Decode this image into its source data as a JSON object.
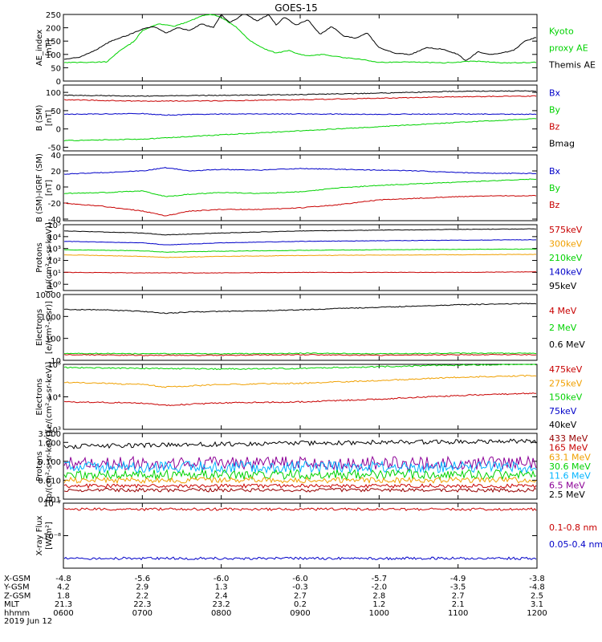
{
  "title": "GOES-15",
  "footer_date": "2019 Jun 12",
  "colors": {
    "black": "#000000",
    "green": "#00d200",
    "blue": "#0000c8",
    "red": "#c80000",
    "orange": "#f0a000",
    "cyan": "#00b4ff",
    "darkred": "#960000",
    "purple": "#8c0096"
  },
  "chart_data": [
    {
      "id": "ae",
      "type": "line",
      "ylabel": [
        "AE_index",
        "[nT]"
      ],
      "ylim": [
        0,
        250
      ],
      "yticks": [
        0,
        50,
        100,
        150,
        200,
        250
      ],
      "legend": [
        {
          "text": "Kyoto",
          "color": "green"
        },
        {
          "text": "proxy AE",
          "color": "green"
        },
        {
          "text": "Themis AE",
          "color": "black"
        }
      ],
      "series": [
        {
          "name": "Kyoto",
          "color": "green",
          "x": [
            6.0,
            6.3,
            6.55,
            6.7,
            6.9,
            7.0,
            7.2,
            7.4,
            7.6,
            7.75,
            7.85,
            7.95,
            8.05,
            8.2,
            8.35,
            8.55,
            8.7,
            8.85,
            9.0,
            9.1,
            9.3,
            9.5,
            9.8,
            10.0,
            10.4,
            10.8,
            11.2,
            11.6,
            12.0
          ],
          "y": [
            70,
            70,
            72,
            110,
            150,
            190,
            215,
            205,
            225,
            245,
            250,
            245,
            230,
            200,
            155,
            120,
            105,
            115,
            100,
            95,
            100,
            90,
            80,
            70,
            72,
            68,
            75,
            68,
            70
          ]
        },
        {
          "name": "Themis AE",
          "color": "black",
          "x": [
            6.0,
            6.2,
            6.4,
            6.6,
            6.8,
            7.0,
            7.15,
            7.3,
            7.45,
            7.6,
            7.75,
            7.9,
            8.0,
            8.1,
            8.2,
            8.3,
            8.45,
            8.6,
            8.7,
            8.8,
            8.95,
            9.1,
            9.25,
            9.4,
            9.55,
            9.7,
            9.85,
            10.0,
            10.2,
            10.4,
            10.6,
            10.8,
            11.0,
            11.1,
            11.25,
            11.4,
            11.55,
            11.7,
            11.85,
            12.0
          ],
          "y": [
            80,
            90,
            115,
            150,
            170,
            195,
            205,
            180,
            200,
            190,
            215,
            200,
            250,
            220,
            235,
            255,
            225,
            250,
            210,
            240,
            210,
            230,
            175,
            205,
            170,
            160,
            180,
            125,
            105,
            100,
            125,
            120,
            100,
            75,
            110,
            100,
            105,
            115,
            150,
            165
          ]
        }
      ]
    },
    {
      "id": "bsm",
      "type": "line",
      "ylabel": [
        "B (SM)",
        "[nT]"
      ],
      "ylim": [
        -60,
        120
      ],
      "yticks": [
        -50,
        0,
        50,
        100
      ],
      "legend": [
        {
          "text": "Bx",
          "color": "blue"
        },
        {
          "text": "By",
          "color": "green"
        },
        {
          "text": "Bz",
          "color": "red"
        },
        {
          "text": "Bmag",
          "color": "black"
        }
      ],
      "series": [
        {
          "name": "Bmag",
          "color": "black",
          "x": [
            6,
            7,
            8,
            9,
            10,
            11,
            12
          ],
          "y": [
            92,
            90,
            92,
            94,
            98,
            103,
            104
          ]
        },
        {
          "name": "Bz",
          "color": "red",
          "x": [
            6,
            7,
            8,
            9,
            10,
            11,
            12
          ],
          "y": [
            80,
            76,
            77,
            80,
            84,
            88,
            90
          ]
        },
        {
          "name": "Bx",
          "color": "blue",
          "x": [
            6,
            7,
            7.3,
            8,
            9,
            10,
            11,
            12
          ],
          "y": [
            40,
            42,
            38,
            41,
            41,
            40,
            41,
            40
          ]
        },
        {
          "name": "By",
          "color": "green",
          "x": [
            6,
            7,
            8,
            9,
            10,
            11,
            12
          ],
          "y": [
            -32,
            -28,
            -16,
            -5,
            6,
            18,
            28
          ]
        }
      ]
    },
    {
      "id": "bigrf",
      "type": "line",
      "ylabel": [
        "B (SM)-IGRF (SM)",
        "[nT]"
      ],
      "ylim": [
        -42,
        40
      ],
      "yticks": [
        -40,
        -20,
        0,
        20,
        40
      ],
      "legend": [
        {
          "text": "Bx",
          "color": "blue"
        },
        {
          "text": "By",
          "color": "green"
        },
        {
          "text": "Bz",
          "color": "red"
        }
      ],
      "series": [
        {
          "name": "Bx",
          "color": "blue",
          "x": [
            6,
            6.5,
            7,
            7.3,
            7.6,
            8,
            8.5,
            9,
            9.5,
            10,
            10.5,
            11,
            11.5,
            12
          ],
          "y": [
            16,
            18,
            20,
            24,
            20,
            22,
            21,
            23,
            22,
            21,
            20,
            18,
            17,
            17
          ]
        },
        {
          "name": "By",
          "color": "green",
          "x": [
            6,
            6.5,
            7,
            7.3,
            7.6,
            8,
            8.5,
            9,
            9.5,
            10,
            10.5,
            11,
            11.5,
            12
          ],
          "y": [
            -8,
            -7,
            -5,
            -12,
            -9,
            -7,
            -8,
            -6,
            -1,
            2,
            4,
            6,
            8,
            10
          ]
        },
        {
          "name": "Bz",
          "color": "red",
          "x": [
            6,
            6.5,
            7,
            7.3,
            7.6,
            8,
            8.5,
            9,
            9.5,
            10,
            10.5,
            11,
            11.5,
            12
          ],
          "y": [
            -20,
            -24,
            -30,
            -36,
            -30,
            -28,
            -28,
            -26,
            -22,
            -16,
            -14,
            -12,
            -11,
            -11
          ]
        }
      ]
    },
    {
      "id": "protons1",
      "type": "line",
      "scale": "log",
      "ylabel": [
        "Protons",
        "[p/(cm²-s-sr-keV)]"
      ],
      "ylim": [
        0.3,
        100000
      ],
      "yticks": [
        1,
        10,
        100,
        1000,
        10000,
        100000
      ],
      "yticklabels": [
        "10⁰",
        "10¹",
        "10²",
        "10³",
        "10⁴",
        "10⁵"
      ],
      "legend": [
        {
          "text": "575keV",
          "color": "red"
        },
        {
          "text": "300keV",
          "color": "orange"
        },
        {
          "text": "210keV",
          "color": "green"
        },
        {
          "text": "140keV",
          "color": "blue"
        },
        {
          "text": "95keV",
          "color": "black"
        }
      ],
      "series": [
        {
          "name": "95keV",
          "color": "black",
          "x": [
            6,
            7,
            7.3,
            8,
            9,
            10,
            11,
            12
          ],
          "y": [
            30000,
            20000,
            14000,
            20000,
            30000,
            35000,
            40000,
            45000
          ]
        },
        {
          "name": "140keV",
          "color": "blue",
          "x": [
            6,
            7,
            7.3,
            8,
            9,
            10,
            11,
            12
          ],
          "y": [
            4000,
            3000,
            2000,
            3000,
            4000,
            4500,
            5000,
            5500
          ]
        },
        {
          "name": "210keV",
          "color": "green",
          "x": [
            6,
            7,
            7.3,
            8,
            9,
            10,
            11,
            12
          ],
          "y": [
            800,
            650,
            500,
            600,
            700,
            800,
            850,
            900
          ]
        },
        {
          "name": "300keV",
          "color": "orange",
          "x": [
            6,
            7,
            7.3,
            8,
            9,
            10,
            11,
            12
          ],
          "y": [
            300,
            220,
            180,
            220,
            260,
            280,
            300,
            320
          ]
        },
        {
          "name": "575keV",
          "color": "red",
          "x": [
            6,
            7,
            8,
            9,
            10,
            11,
            12
          ],
          "y": [
            10,
            9,
            9,
            10,
            10,
            10,
            11
          ]
        }
      ]
    },
    {
      "id": "electrons1",
      "type": "line",
      "scale": "log",
      "ylabel": [
        "Electrons",
        "[e/(cm²-s-sr)]"
      ],
      "ylim": [
        10,
        10000
      ],
      "yticks": [
        10,
        100,
        1000,
        10000
      ],
      "yticklabels": [
        "10",
        "100",
        "1000",
        "10000"
      ],
      "legend": [
        {
          "text": "4 MeV",
          "color": "red"
        },
        {
          "text": "2 MeV",
          "color": "green"
        },
        {
          "text": "0.6 MeV",
          "color": "black"
        }
      ],
      "series": [
        {
          "name": "0.6 MeV",
          "color": "black",
          "x": [
            6,
            6.5,
            7,
            7.3,
            7.6,
            8,
            8.5,
            9,
            9.5,
            10,
            10.5,
            11,
            11.5,
            12
          ],
          "y": [
            2100,
            2000,
            1700,
            1400,
            1600,
            1700,
            1800,
            2000,
            2300,
            2600,
            3000,
            3400,
            3700,
            3900
          ]
        },
        {
          "name": "2 MeV",
          "color": "green",
          "x": [
            6,
            7,
            8,
            9,
            10,
            11,
            12
          ],
          "y": [
            21,
            20,
            20,
            21,
            20,
            21,
            21
          ]
        },
        {
          "name": "4 MeV",
          "color": "red",
          "x": [
            6,
            7,
            8,
            9,
            10,
            11,
            12
          ],
          "y": [
            18,
            17,
            17,
            18,
            17,
            18,
            18
          ]
        }
      ]
    },
    {
      "id": "electrons2",
      "type": "line",
      "scale": "log",
      "ylabel": [
        "Electrons",
        "[e/(cm²-s-sr-keV)]"
      ],
      "ylim": [
        1000,
        100000
      ],
      "yticks": [
        1000,
        10000,
        100000
      ],
      "yticklabels": [
        "10³",
        "10⁴",
        "10⁵"
      ],
      "legend": [
        {
          "text": "475keV",
          "color": "red"
        },
        {
          "text": "275keV",
          "color": "orange"
        },
        {
          "text": "150keV",
          "color": "green"
        },
        {
          "text": "75keV",
          "color": "blue"
        },
        {
          "text": "40keV",
          "color": "black"
        }
      ],
      "series": [
        {
          "name": "150keV",
          "color": "green",
          "x": [
            6,
            7,
            8,
            9,
            10,
            11,
            12
          ],
          "y": [
            80000,
            75000,
            72000,
            75000,
            85000,
            95000,
            100000
          ]
        },
        {
          "name": "275keV",
          "color": "orange",
          "x": [
            6,
            7,
            7.3,
            8,
            9,
            10,
            11,
            12
          ],
          "y": [
            28000,
            24000,
            20000,
            24000,
            26000,
            32000,
            40000,
            45000
          ]
        },
        {
          "name": "475keV",
          "color": "red",
          "x": [
            6,
            7,
            7.3,
            8,
            9,
            10,
            11,
            12
          ],
          "y": [
            7000,
            6500,
            5500,
            6500,
            7000,
            8500,
            11000,
            13000
          ]
        }
      ]
    },
    {
      "id": "protons2",
      "type": "line",
      "scale": "log",
      "ylabel": [
        "Protons",
        "[p/(cm²-s-sr-keV)]"
      ],
      "ylim": [
        0.001,
        3.0
      ],
      "yticks": [
        0.001,
        0.01,
        0.1,
        1.0,
        3.0
      ],
      "yticklabels": [
        "0.001",
        "0.010",
        "0.100",
        "1.000",
        "3.000"
      ],
      "legend": [
        {
          "text": "433 MeV",
          "color": "darkred"
        },
        {
          "text": "165 MeV",
          "color": "red"
        },
        {
          "text": "63.1 MeV",
          "color": "orange"
        },
        {
          "text": "30.6 MeV",
          "color": "green"
        },
        {
          "text": "11.6 MeV",
          "color": "cyan"
        },
        {
          "text": "6.5 MeV",
          "color": "purple"
        },
        {
          "text": "2.5 MeV",
          "color": "black"
        }
      ],
      "series": [
        {
          "name": "2.5 MeV",
          "color": "black",
          "noise": 0.12,
          "x": [
            6,
            7,
            8,
            9,
            10,
            11,
            12
          ],
          "y": [
            0.6,
            0.7,
            0.8,
            0.9,
            1.0,
            1.1,
            1.2
          ]
        },
        {
          "name": "6.5 MeV",
          "color": "purple",
          "noise": 0.35,
          "x": [
            6,
            12
          ],
          "y": [
            0.08,
            0.08
          ]
        },
        {
          "name": "11.6 MeV",
          "color": "cyan",
          "noise": 0.3,
          "x": [
            6,
            12
          ],
          "y": [
            0.05,
            0.05
          ]
        },
        {
          "name": "30.6 MeV",
          "color": "green",
          "noise": 0.25,
          "x": [
            6,
            12
          ],
          "y": [
            0.02,
            0.02
          ]
        },
        {
          "name": "63.1 MeV",
          "color": "orange",
          "noise": 0.15,
          "x": [
            6,
            12
          ],
          "y": [
            0.01,
            0.01
          ]
        },
        {
          "name": "165 MeV",
          "color": "red",
          "noise": 0.1,
          "x": [
            6,
            12
          ],
          "y": [
            0.005,
            0.005
          ]
        },
        {
          "name": "433 MeV",
          "color": "darkred",
          "noise": 0.1,
          "x": [
            6,
            12
          ],
          "y": [
            0.003,
            0.003
          ]
        }
      ]
    },
    {
      "id": "xray",
      "type": "line",
      "scale": "log",
      "ylabel": [
        "X-ray Flux",
        "[W/m²]"
      ],
      "ylim": [
        1e-09,
        1e-07
      ],
      "yticks": [
        1e-09,
        1e-08,
        1e-07
      ],
      "yticklabels": [
        "",
        "10⁻⁸",
        "10⁻⁷"
      ],
      "legend": [
        {
          "text": "0.1-0.8 nm",
          "color": "red"
        },
        {
          "text": "0.05-0.4 nm",
          "color": "blue"
        }
      ],
      "series": [
        {
          "name": "0.1-0.8 nm",
          "color": "red",
          "noise": 0.04,
          "x": [
            6,
            12
          ],
          "y": [
            6.5e-08,
            6.5e-08
          ]
        },
        {
          "name": "0.05-0.4 nm",
          "color": "blue",
          "noise": 0.04,
          "x": [
            6,
            12
          ],
          "y": [
            2e-09,
            2e-09
          ]
        }
      ]
    }
  ],
  "x_axis": {
    "xlim": [
      6,
      12
    ],
    "ticks": [
      6,
      7,
      8,
      9,
      10,
      11,
      12
    ],
    "row_labels": [
      "X-GSM",
      "Y-GSM",
      "Z-GSM",
      "MLT",
      "hhmm"
    ],
    "rows": [
      [
        "-4.8",
        "-5.6",
        "-6.0",
        "-6.0",
        "-5.7",
        "-4.9",
        "-3.8"
      ],
      [
        "4.2",
        "2.9",
        "1.3",
        "-0.3",
        "-2.0",
        "-3.5",
        "-4.8"
      ],
      [
        "1.8",
        "2.2",
        "2.4",
        "2.7",
        "2.8",
        "2.7",
        "2.5"
      ],
      [
        "21.3",
        "22.3",
        "23.2",
        "0.2",
        "1.2",
        "2.1",
        "3.1"
      ],
      [
        "0600",
        "0700",
        "0800",
        "0900",
        "1000",
        "1100",
        "1200"
      ]
    ]
  }
}
